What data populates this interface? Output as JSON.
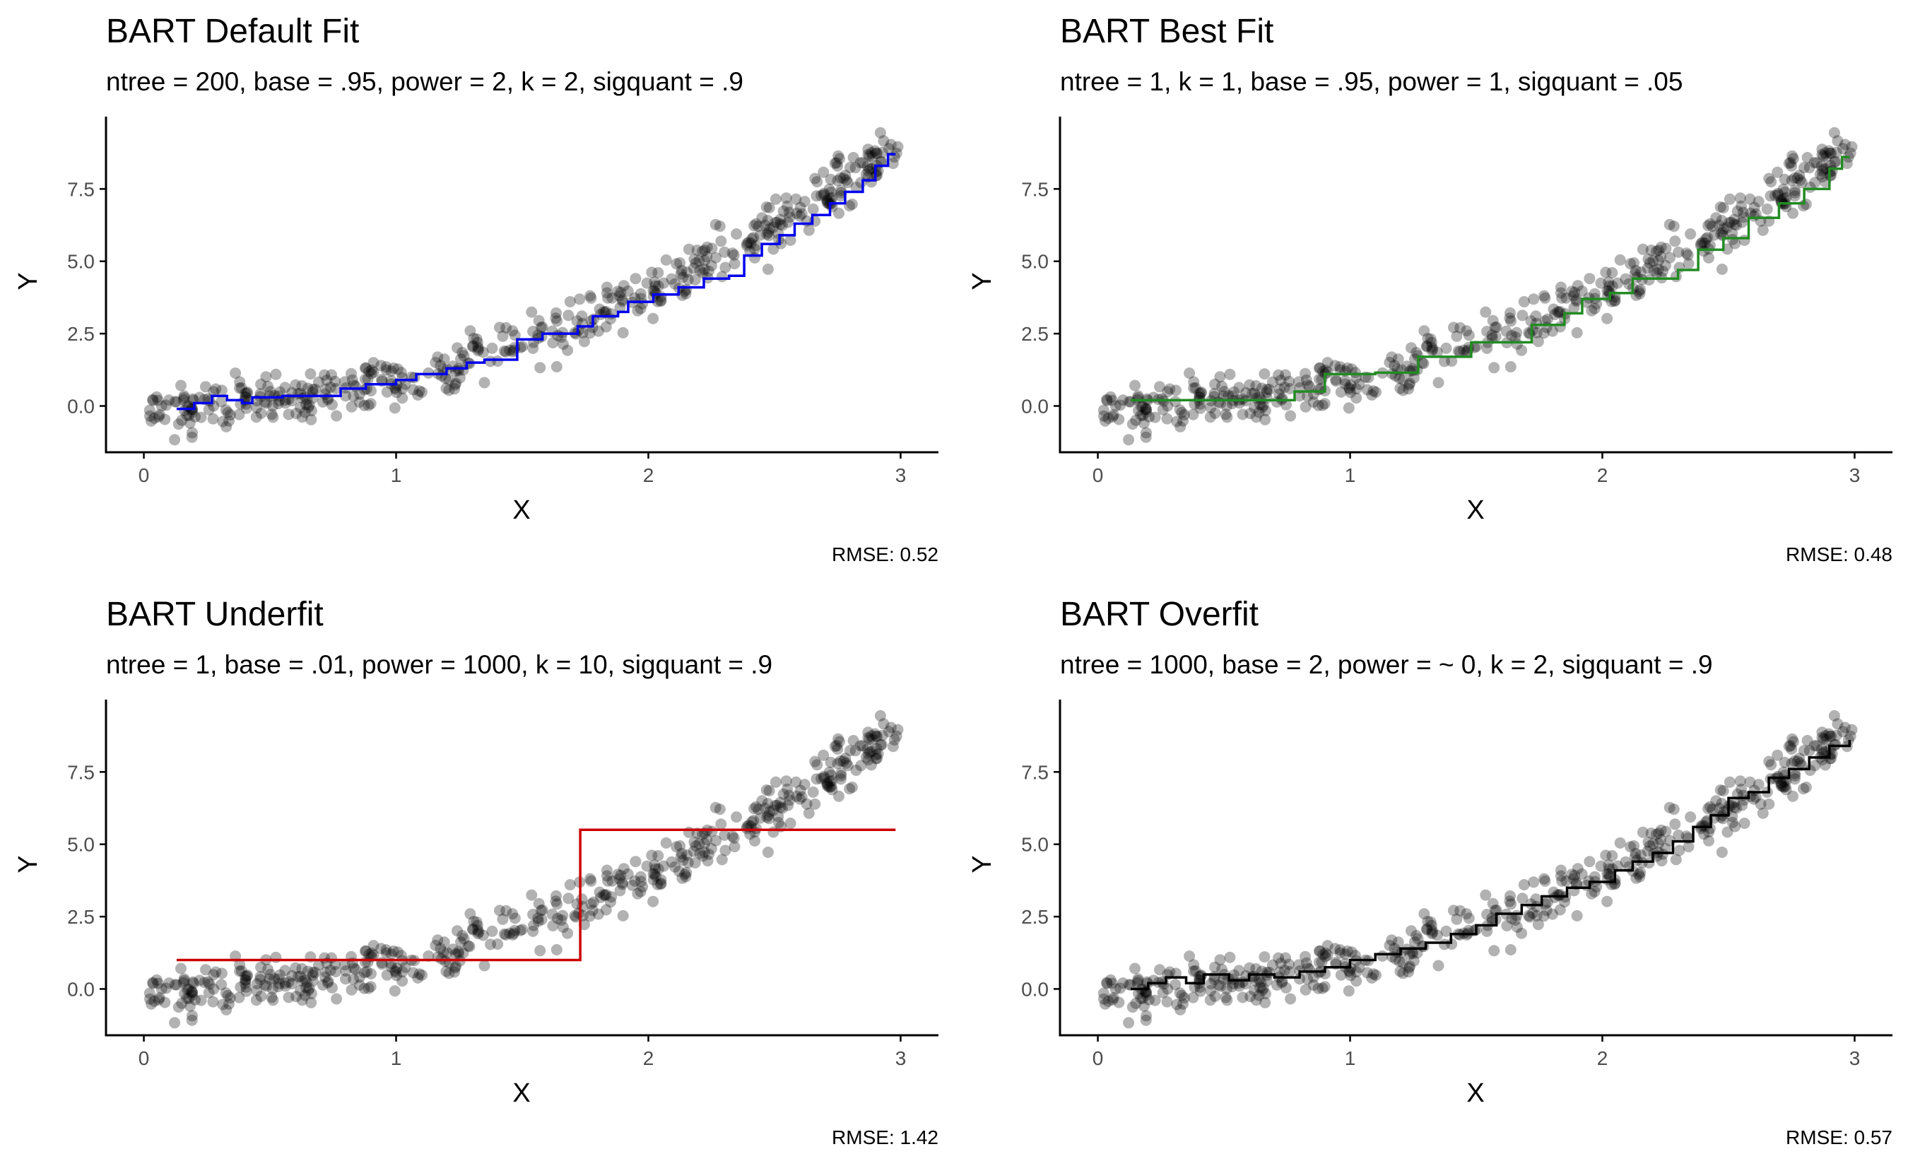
{
  "figure": {
    "point_color": "#000000",
    "point_opacity": 0.3
  },
  "chart_data": [
    {
      "type": "scatter",
      "title": "BART Default Fit",
      "subtitle": "ntree = 200, base = .95, power = 2, k = 2, sigquant = .9",
      "xlabel": "X",
      "ylabel": "Y",
      "xlim": [
        -0.15,
        3.15
      ],
      "ylim": [
        -1.6,
        10.0
      ],
      "x_ticks": [
        0,
        1,
        2,
        3
      ],
      "x_tick_labels": [
        "0",
        "1",
        "2",
        "3"
      ],
      "y_ticks": [
        0,
        2.5,
        5,
        7.5
      ],
      "y_tick_labels": [
        "0.0",
        "2.5",
        "5.0",
        "7.5"
      ],
      "grid": false,
      "caption": "RMSE:  0.52",
      "fit_color": "#0000ee",
      "fit_steps": [
        [
          0.13,
          -0.1
        ],
        [
          0.2,
          0.1
        ],
        [
          0.27,
          0.35
        ],
        [
          0.33,
          0.2
        ],
        [
          0.39,
          0.1
        ],
        [
          0.43,
          0.3
        ],
        [
          0.55,
          0.35
        ],
        [
          0.78,
          0.6
        ],
        [
          0.88,
          0.75
        ],
        [
          1.0,
          0.9
        ],
        [
          1.08,
          1.1
        ],
        [
          1.2,
          1.3
        ],
        [
          1.28,
          1.5
        ],
        [
          1.35,
          1.6
        ],
        [
          1.48,
          2.3
        ],
        [
          1.58,
          2.5
        ],
        [
          1.72,
          2.75
        ],
        [
          1.78,
          3.1
        ],
        [
          1.88,
          3.25
        ],
        [
          1.92,
          3.6
        ],
        [
          2.02,
          3.85
        ],
        [
          2.12,
          4.1
        ],
        [
          2.22,
          4.4
        ],
        [
          2.32,
          4.5
        ],
        [
          2.38,
          5.2
        ],
        [
          2.45,
          5.6
        ],
        [
          2.52,
          5.9
        ],
        [
          2.58,
          6.3
        ],
        [
          2.65,
          6.6
        ],
        [
          2.72,
          7.0
        ],
        [
          2.78,
          7.4
        ],
        [
          2.85,
          7.8
        ],
        [
          2.9,
          8.3
        ],
        [
          2.95,
          8.7
        ],
        [
          2.98,
          8.7
        ]
      ],
      "rmse": 0.52
    },
    {
      "type": "scatter",
      "title": "BART Best Fit",
      "subtitle": "ntree = 1, k = 1, base = .95, power = 1, sigquant = .05",
      "xlabel": "X",
      "ylabel": "Y",
      "xlim": [
        -0.15,
        3.15
      ],
      "ylim": [
        -1.6,
        10.0
      ],
      "x_ticks": [
        0,
        1,
        2,
        3
      ],
      "x_tick_labels": [
        "0",
        "1",
        "2",
        "3"
      ],
      "y_ticks": [
        0,
        2.5,
        5,
        7.5
      ],
      "y_tick_labels": [
        "0.0",
        "2.5",
        "5.0",
        "7.5"
      ],
      "grid": false,
      "caption": "RMSE:  0.48",
      "fit_color": "#228b22",
      "fit_steps": [
        [
          0.13,
          0.2
        ],
        [
          0.78,
          0.5
        ],
        [
          0.9,
          1.1
        ],
        [
          1.1,
          1.15
        ],
        [
          1.27,
          1.7
        ],
        [
          1.48,
          2.2
        ],
        [
          1.72,
          2.8
        ],
        [
          1.85,
          3.2
        ],
        [
          1.92,
          3.7
        ],
        [
          2.03,
          3.9
        ],
        [
          2.12,
          4.4
        ],
        [
          2.3,
          4.7
        ],
        [
          2.38,
          5.4
        ],
        [
          2.48,
          5.8
        ],
        [
          2.58,
          6.5
        ],
        [
          2.7,
          7.0
        ],
        [
          2.8,
          7.5
        ],
        [
          2.9,
          8.2
        ],
        [
          2.95,
          8.6
        ],
        [
          2.98,
          8.6
        ]
      ],
      "rmse": 0.48
    },
    {
      "type": "scatter",
      "title": "BART Underfit",
      "subtitle": "ntree = 1, base = .01, power = 1000, k = 10, sigquant = .9",
      "xlabel": "X",
      "ylabel": "Y",
      "xlim": [
        -0.15,
        3.15
      ],
      "ylim": [
        -1.6,
        10.0
      ],
      "x_ticks": [
        0,
        1,
        2,
        3
      ],
      "x_tick_labels": [
        "0",
        "1",
        "2",
        "3"
      ],
      "y_ticks": [
        0,
        2.5,
        5,
        7.5
      ],
      "y_tick_labels": [
        "0.0",
        "2.5",
        "5.0",
        "7.5"
      ],
      "grid": false,
      "caption": "RMSE:  1.42",
      "fit_color": "#cc0000",
      "fit_steps": [
        [
          0.13,
          1.0
        ],
        [
          1.73,
          5.5
        ],
        [
          2.98,
          5.5
        ]
      ],
      "rmse": 1.42
    },
    {
      "type": "scatter",
      "title": "BART Overfit",
      "subtitle": "ntree = 1000, base = 2, power = ~ 0, k = 2, sigquant = .9",
      "xlabel": "X",
      "ylabel": "Y",
      "xlim": [
        -0.15,
        3.15
      ],
      "ylim": [
        -1.6,
        10.0
      ],
      "x_ticks": [
        0,
        1,
        2,
        3
      ],
      "x_tick_labels": [
        "0",
        "1",
        "2",
        "3"
      ],
      "y_ticks": [
        0,
        2.5,
        5,
        7.5
      ],
      "y_tick_labels": [
        "0.0",
        "2.5",
        "5.0",
        "7.5"
      ],
      "grid": false,
      "caption": "RMSE:  0.57",
      "fit_color": "#000000",
      "fit_steps": [
        [
          0.13,
          0.0
        ],
        [
          0.2,
          0.2
        ],
        [
          0.27,
          0.4
        ],
        [
          0.35,
          0.2
        ],
        [
          0.42,
          0.5
        ],
        [
          0.52,
          0.3
        ],
        [
          0.6,
          0.5
        ],
        [
          0.7,
          0.4
        ],
        [
          0.8,
          0.6
        ],
        [
          0.9,
          0.75
        ],
        [
          1.0,
          1.0
        ],
        [
          1.1,
          1.2
        ],
        [
          1.2,
          1.4
        ],
        [
          1.3,
          1.6
        ],
        [
          1.4,
          1.9
        ],
        [
          1.5,
          2.2
        ],
        [
          1.58,
          2.6
        ],
        [
          1.68,
          2.9
        ],
        [
          1.76,
          3.2
        ],
        [
          1.86,
          3.5
        ],
        [
          1.95,
          3.7
        ],
        [
          2.05,
          4.1
        ],
        [
          2.12,
          4.4
        ],
        [
          2.2,
          4.7
        ],
        [
          2.28,
          5.1
        ],
        [
          2.36,
          5.6
        ],
        [
          2.43,
          6.0
        ],
        [
          2.5,
          6.6
        ],
        [
          2.58,
          6.8
        ],
        [
          2.66,
          7.3
        ],
        [
          2.74,
          7.6
        ],
        [
          2.82,
          8.0
        ],
        [
          2.9,
          8.4
        ],
        [
          2.98,
          8.6
        ]
      ],
      "rmse": 0.57
    }
  ]
}
